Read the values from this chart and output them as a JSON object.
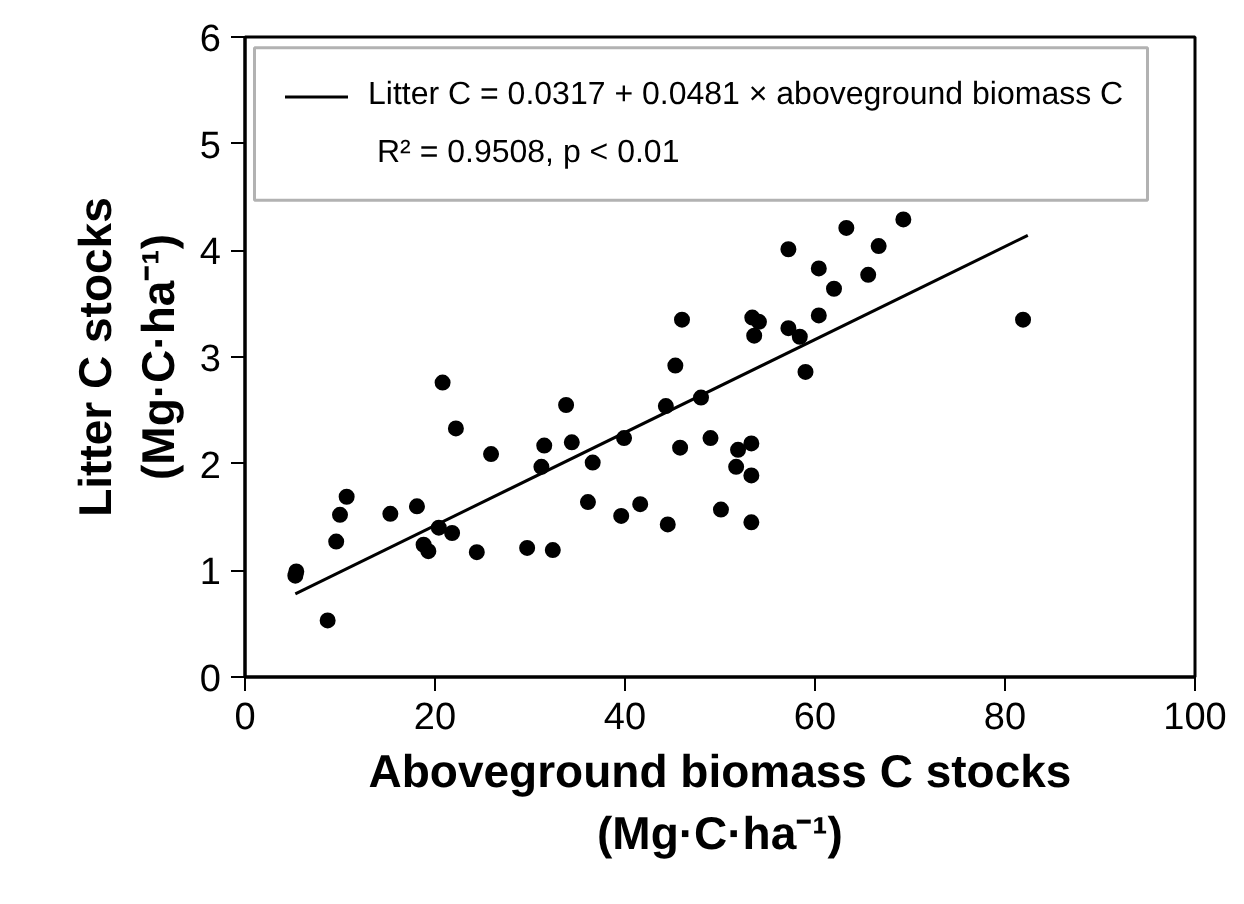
{
  "chart_data": {
    "type": "scatter",
    "xlabel": "Aboveground biomass C stocks\n(Mg·C·ha⁻¹)",
    "ylabel": "Litter C stocks\n(Mg·C·ha⁻¹)",
    "xlim": [
      0,
      100
    ],
    "ylim": [
      0,
      6
    ],
    "xticks": [
      0,
      20,
      40,
      60,
      80,
      100
    ],
    "yticks": [
      0,
      1,
      2,
      3,
      4,
      5,
      6
    ],
    "grid": false,
    "legend": "top",
    "annotations": [
      "R² = 0.9508, p < 0.01"
    ],
    "series": [
      {
        "color": "#000000",
        "marker": "circle",
        "x": [
          5.3,
          5.4,
          8.7,
          9.6,
          10.0,
          10.7,
          15.3,
          18.1,
          18.8,
          19.3,
          20.4,
          20.8,
          21.8,
          22.2,
          24.4,
          25.9,
          29.7,
          31.2,
          31.5,
          32.4,
          33.8,
          34.4,
          36.1,
          36.6,
          39.6,
          39.9,
          41.6,
          44.3,
          44.5,
          45.3,
          45.8,
          46.0,
          48.0,
          49.0,
          50.1,
          51.7,
          51.9,
          53.3,
          53.3,
          53.3,
          53.4,
          54.1,
          53.6,
          57.2,
          57.2,
          58.4,
          59.0,
          60.4,
          60.4,
          62.0,
          63.3,
          65.6,
          66.7,
          69.3,
          81.9
        ],
        "values": [
          0.95,
          0.99,
          0.53,
          1.27,
          1.52,
          1.69,
          1.53,
          1.6,
          1.24,
          1.18,
          1.4,
          2.76,
          1.35,
          2.33,
          1.17,
          2.09,
          1.21,
          1.97,
          2.17,
          1.19,
          2.55,
          2.2,
          1.64,
          2.01,
          1.51,
          2.24,
          1.62,
          2.54,
          1.43,
          2.92,
          2.15,
          3.35,
          2.62,
          2.24,
          1.57,
          1.97,
          2.13,
          2.19,
          1.89,
          1.45,
          3.37,
          3.33,
          3.2,
          4.01,
          3.27,
          3.19,
          2.86,
          3.83,
          3.39,
          3.64,
          4.21,
          3.77,
          4.04,
          4.29,
          3.35
        ]
      },
      {
        "type": "line",
        "name": "Litter C = 0.0317 + 0.0481 × aboveground biomass C",
        "color": "#000000",
        "line_style": "solid",
        "x": [
          5.3,
          82.4
        ],
        "values": [
          0.78,
          4.14
        ]
      }
    ]
  }
}
